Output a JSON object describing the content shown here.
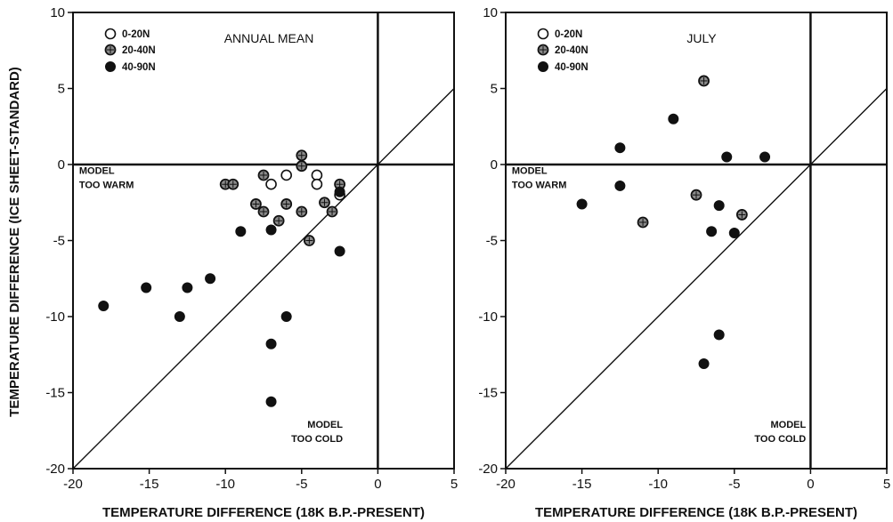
{
  "colors": {
    "ink": "#111111",
    "background": "#ffffff",
    "marker_open_fill": "#ffffff",
    "marker_hatched_fill": "#8a8a8a"
  },
  "ylabel": "TEMPERATURE DIFFERENCE  (ICE SHEET-STANDARD)",
  "chart_data": [
    {
      "type": "scatter",
      "title": "ANNUAL MEAN",
      "xlabel": "TEMPERATURE DIFFERENCE  (18K B.P.-PRESENT)",
      "xlim": [
        -20,
        5
      ],
      "ylim": [
        -20,
        10
      ],
      "xticks": [
        -20,
        -15,
        -10,
        -5,
        0,
        5
      ],
      "yticks": [
        -20,
        -15,
        -10,
        -5,
        0,
        5,
        10
      ],
      "xtick_labels": [
        "-20",
        "-15",
        "-10",
        "-5",
        "0",
        "5"
      ],
      "ytick_labels": [
        "-20",
        "-15",
        "-10",
        "-5",
        "0",
        "5",
        "10"
      ],
      "grid": false,
      "legend_position": "top-left",
      "reference_lines": [
        "y=0",
        "x=0",
        "y=x"
      ],
      "annotations": [
        {
          "lines": [
            "MODEL",
            "TOO WARM"
          ],
          "x": -19.6,
          "y": -0.6,
          "anchor": "start"
        },
        {
          "lines": [
            "MODEL",
            "TOO COLD"
          ],
          "x": -2.3,
          "y": -17.3,
          "anchor": "end"
        }
      ],
      "series": [
        {
          "name": "0-20N",
          "marker": "open",
          "points": [
            [
              -7,
              -1.3
            ],
            [
              -6,
              -0.7
            ],
            [
              -4,
              -0.7
            ],
            [
              -4,
              -1.3
            ],
            [
              -2.5,
              -2
            ]
          ]
        },
        {
          "name": "20-40N",
          "marker": "hatched",
          "points": [
            [
              -5,
              0.6
            ],
            [
              -5,
              -0.1
            ],
            [
              -10,
              -1.3
            ],
            [
              -9.5,
              -1.3
            ],
            [
              -7.5,
              -0.7
            ],
            [
              -6,
              -2.6
            ],
            [
              -3.5,
              -2.5
            ],
            [
              -2.5,
              -1.3
            ],
            [
              -8,
              -2.6
            ],
            [
              -7.5,
              -3.1
            ],
            [
              -5,
              -3.1
            ],
            [
              -6.5,
              -3.7
            ],
            [
              -3,
              -3.1
            ],
            [
              -4.5,
              -5
            ]
          ]
        },
        {
          "name": "40-90N",
          "marker": "filled",
          "points": [
            [
              -2.5,
              -1.8
            ],
            [
              -9,
              -4.4
            ],
            [
              -7,
              -4.3
            ],
            [
              -2.5,
              -5.7
            ],
            [
              -18,
              -9.3
            ],
            [
              -15.2,
              -8.1
            ],
            [
              -12.5,
              -8.1
            ],
            [
              -11,
              -7.5
            ],
            [
              -13,
              -10
            ],
            [
              -6,
              -10
            ],
            [
              -7,
              -11.8
            ],
            [
              -7,
              -15.6
            ]
          ]
        }
      ]
    },
    {
      "type": "scatter",
      "title": "JULY",
      "xlabel": "TEMPERATURE DIFFERENCE  (18K B.P.-PRESENT)",
      "xlim": [
        -20,
        5
      ],
      "ylim": [
        -20,
        10
      ],
      "xticks": [
        -20,
        -15,
        -10,
        -5,
        0,
        5
      ],
      "yticks": [
        -20,
        -15,
        -10,
        -5,
        0,
        5,
        10
      ],
      "xtick_labels": [
        "-20",
        "-15",
        "-10",
        "-5",
        "0",
        "5"
      ],
      "ytick_labels": [
        "-20",
        "-15",
        "-10",
        "-5",
        "0",
        "5",
        "10"
      ],
      "grid": false,
      "legend_position": "top-left",
      "reference_lines": [
        "y=0",
        "x=0",
        "y=x"
      ],
      "annotations": [
        {
          "lines": [
            "MODEL",
            "TOO WARM"
          ],
          "x": -19.6,
          "y": -0.6,
          "anchor": "start"
        },
        {
          "lines": [
            "MODEL",
            "TOO COLD"
          ],
          "x": -0.3,
          "y": -17.3,
          "anchor": "end"
        }
      ],
      "series": [
        {
          "name": "0-20N",
          "marker": "open",
          "points": []
        },
        {
          "name": "20-40N",
          "marker": "hatched",
          "points": [
            [
              -7,
              5.5
            ],
            [
              -11,
              -3.8
            ],
            [
              -4.5,
              -3.3
            ],
            [
              -7.5,
              -2
            ]
          ]
        },
        {
          "name": "40-90N",
          "marker": "filled",
          "points": [
            [
              -9,
              3
            ],
            [
              -12.5,
              1.1
            ],
            [
              -5.5,
              0.5
            ],
            [
              -3,
              0.5
            ],
            [
              -12.5,
              -1.4
            ],
            [
              -15,
              -2.6
            ],
            [
              -6,
              -2.7
            ],
            [
              -6.5,
              -4.4
            ],
            [
              -5,
              -4.5
            ],
            [
              -6,
              -11.2
            ],
            [
              -7,
              -13.1
            ]
          ]
        }
      ]
    }
  ]
}
